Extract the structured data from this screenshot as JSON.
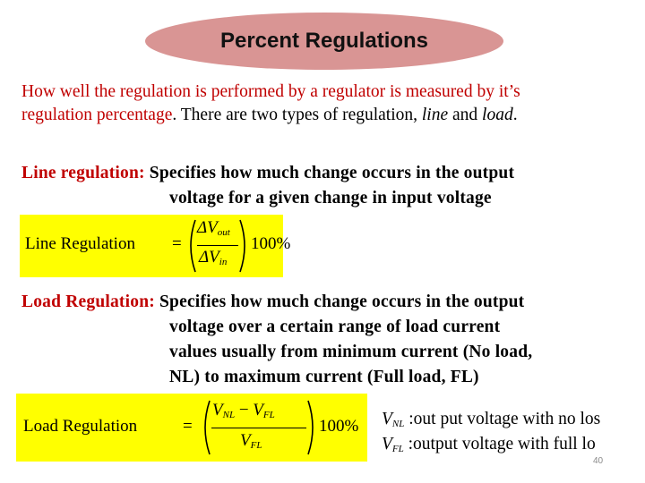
{
  "title": "Percent Regulations",
  "intro": {
    "red_part": "How well the regulation is performed by a regulator is measured by it’s regulation percentage",
    "line1": "How well the regulation is performed by a regulator is measured by it’s",
    "line2_red": "regulation percentage",
    "line2_rest_a": ". There are two types of regulation, ",
    "line2_italic_1": "line",
    "line2_rest_b": " and ",
    "line2_italic_2": "load",
    "line2_end": "."
  },
  "line_regulation": {
    "label": "Line regulation:",
    "desc_1": " Specifies how much change occurs in the output",
    "desc_2": "voltage for a given change in input voltage",
    "formula": {
      "lhs": "Line Regulation",
      "equals": "=",
      "num_delta": "ΔV",
      "num_sub": "out",
      "den_delta": "ΔV",
      "den_sub": "in",
      "percent": "100%"
    }
  },
  "load_regulation": {
    "label": "Load Regulation:",
    "desc_1": " Specifies how much change occurs in the output",
    "desc_2": "voltage over a certain range of load current",
    "desc_3": "values usually from minimum current (No load,",
    "desc_4": "NL) to maximum current (Full load, FL)",
    "formula": {
      "lhs": "Load Regulation",
      "equals": "=",
      "num_v1": "V",
      "num_sub1": "NL",
      "minus": " − ",
      "num_v2": "V",
      "num_sub2": "FL",
      "den_v": "V",
      "den_sub": "FL",
      "percent": "100%"
    },
    "legend": [
      {
        "sym": "V",
        "sub": "NL",
        "text": " :out put voltage with no los"
      },
      {
        "sym": "V",
        "sub": "FL",
        "text": " :output voltage with full lo"
      }
    ]
  },
  "slide_number": "40",
  "colors": {
    "accent_red": "#c00000",
    "title_pill": "#d99594",
    "highlight": "#ffff00"
  }
}
